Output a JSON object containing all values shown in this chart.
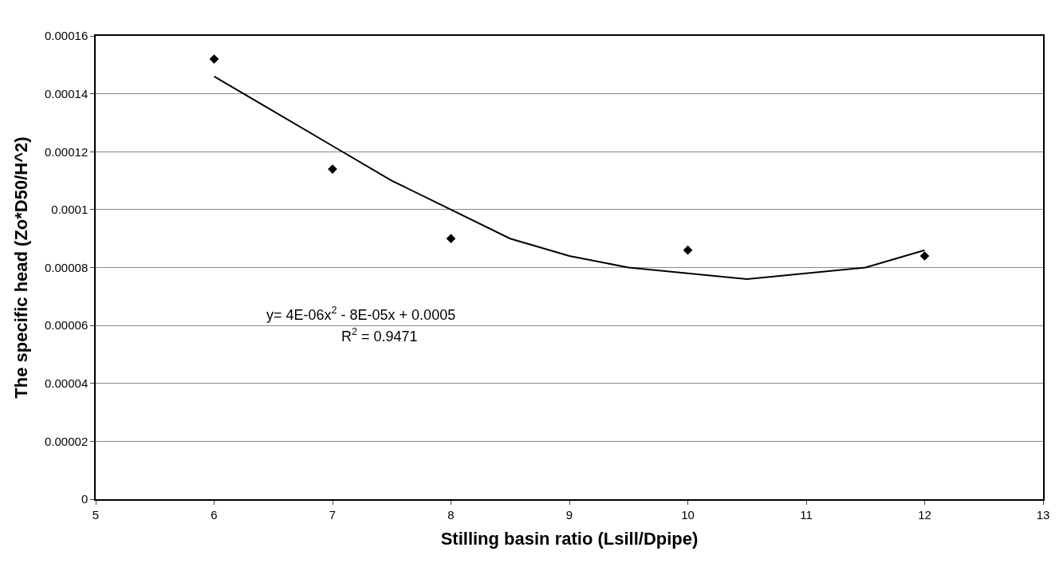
{
  "chart_data": {
    "type": "scatter",
    "xlabel": "Stilling basin ratio (Lsill/Dpipe)",
    "ylabel": "The specific head (Zo*D50/H^2)",
    "series": [
      {
        "color": "#000000",
        "marker": "diamond",
        "x": [
          6,
          7,
          8,
          10,
          12
        ],
        "values": [
          0.000152,
          0.000114,
          9e-05,
          8.6e-05,
          8.4e-05
        ]
      },
      {
        "type": "line",
        "color": "#000000",
        "marker": "none",
        "line_style": "solid",
        "x": [
          6,
          6.5,
          7,
          7.5,
          8,
          8.5,
          9,
          9.5,
          10,
          10.5,
          11,
          11.5,
          12
        ],
        "values": [
          0.000146,
          0.000134,
          0.000122,
          0.00011,
          0.0001,
          9e-05,
          8.4e-05,
          8e-05,
          7.8e-05,
          7.6e-05,
          7.8e-05,
          8e-05,
          8.6e-05
        ]
      }
    ],
    "xlim": [
      5,
      13
    ],
    "xticks": [
      5,
      6,
      7,
      8,
      9,
      10,
      11,
      12,
      13
    ],
    "ylim": [
      0,
      0.00016
    ],
    "yticks": [
      0,
      {
        "value": 2e-05,
        "label": "0.00002"
      },
      {
        "value": 4e-05,
        "label": "0.00004"
      },
      {
        "value": 6e-05,
        "label": "0.00006"
      },
      {
        "value": 8e-05,
        "label": "0.00008"
      },
      {
        "value": 0.0001,
        "label": "0.0001"
      },
      {
        "value": 0.00012,
        "label": "0.00012"
      },
      {
        "value": 0.00014,
        "label": "0.00014"
      },
      {
        "value": 0.00016,
        "label": "0.00016"
      }
    ],
    "annotations": [
      "y= 4E-06x$^{2}$ - 8E-05x + 0.0005",
      "R$^{2}$ = 0.9471"
    ],
    "grid": "y",
    "legend": false
  }
}
